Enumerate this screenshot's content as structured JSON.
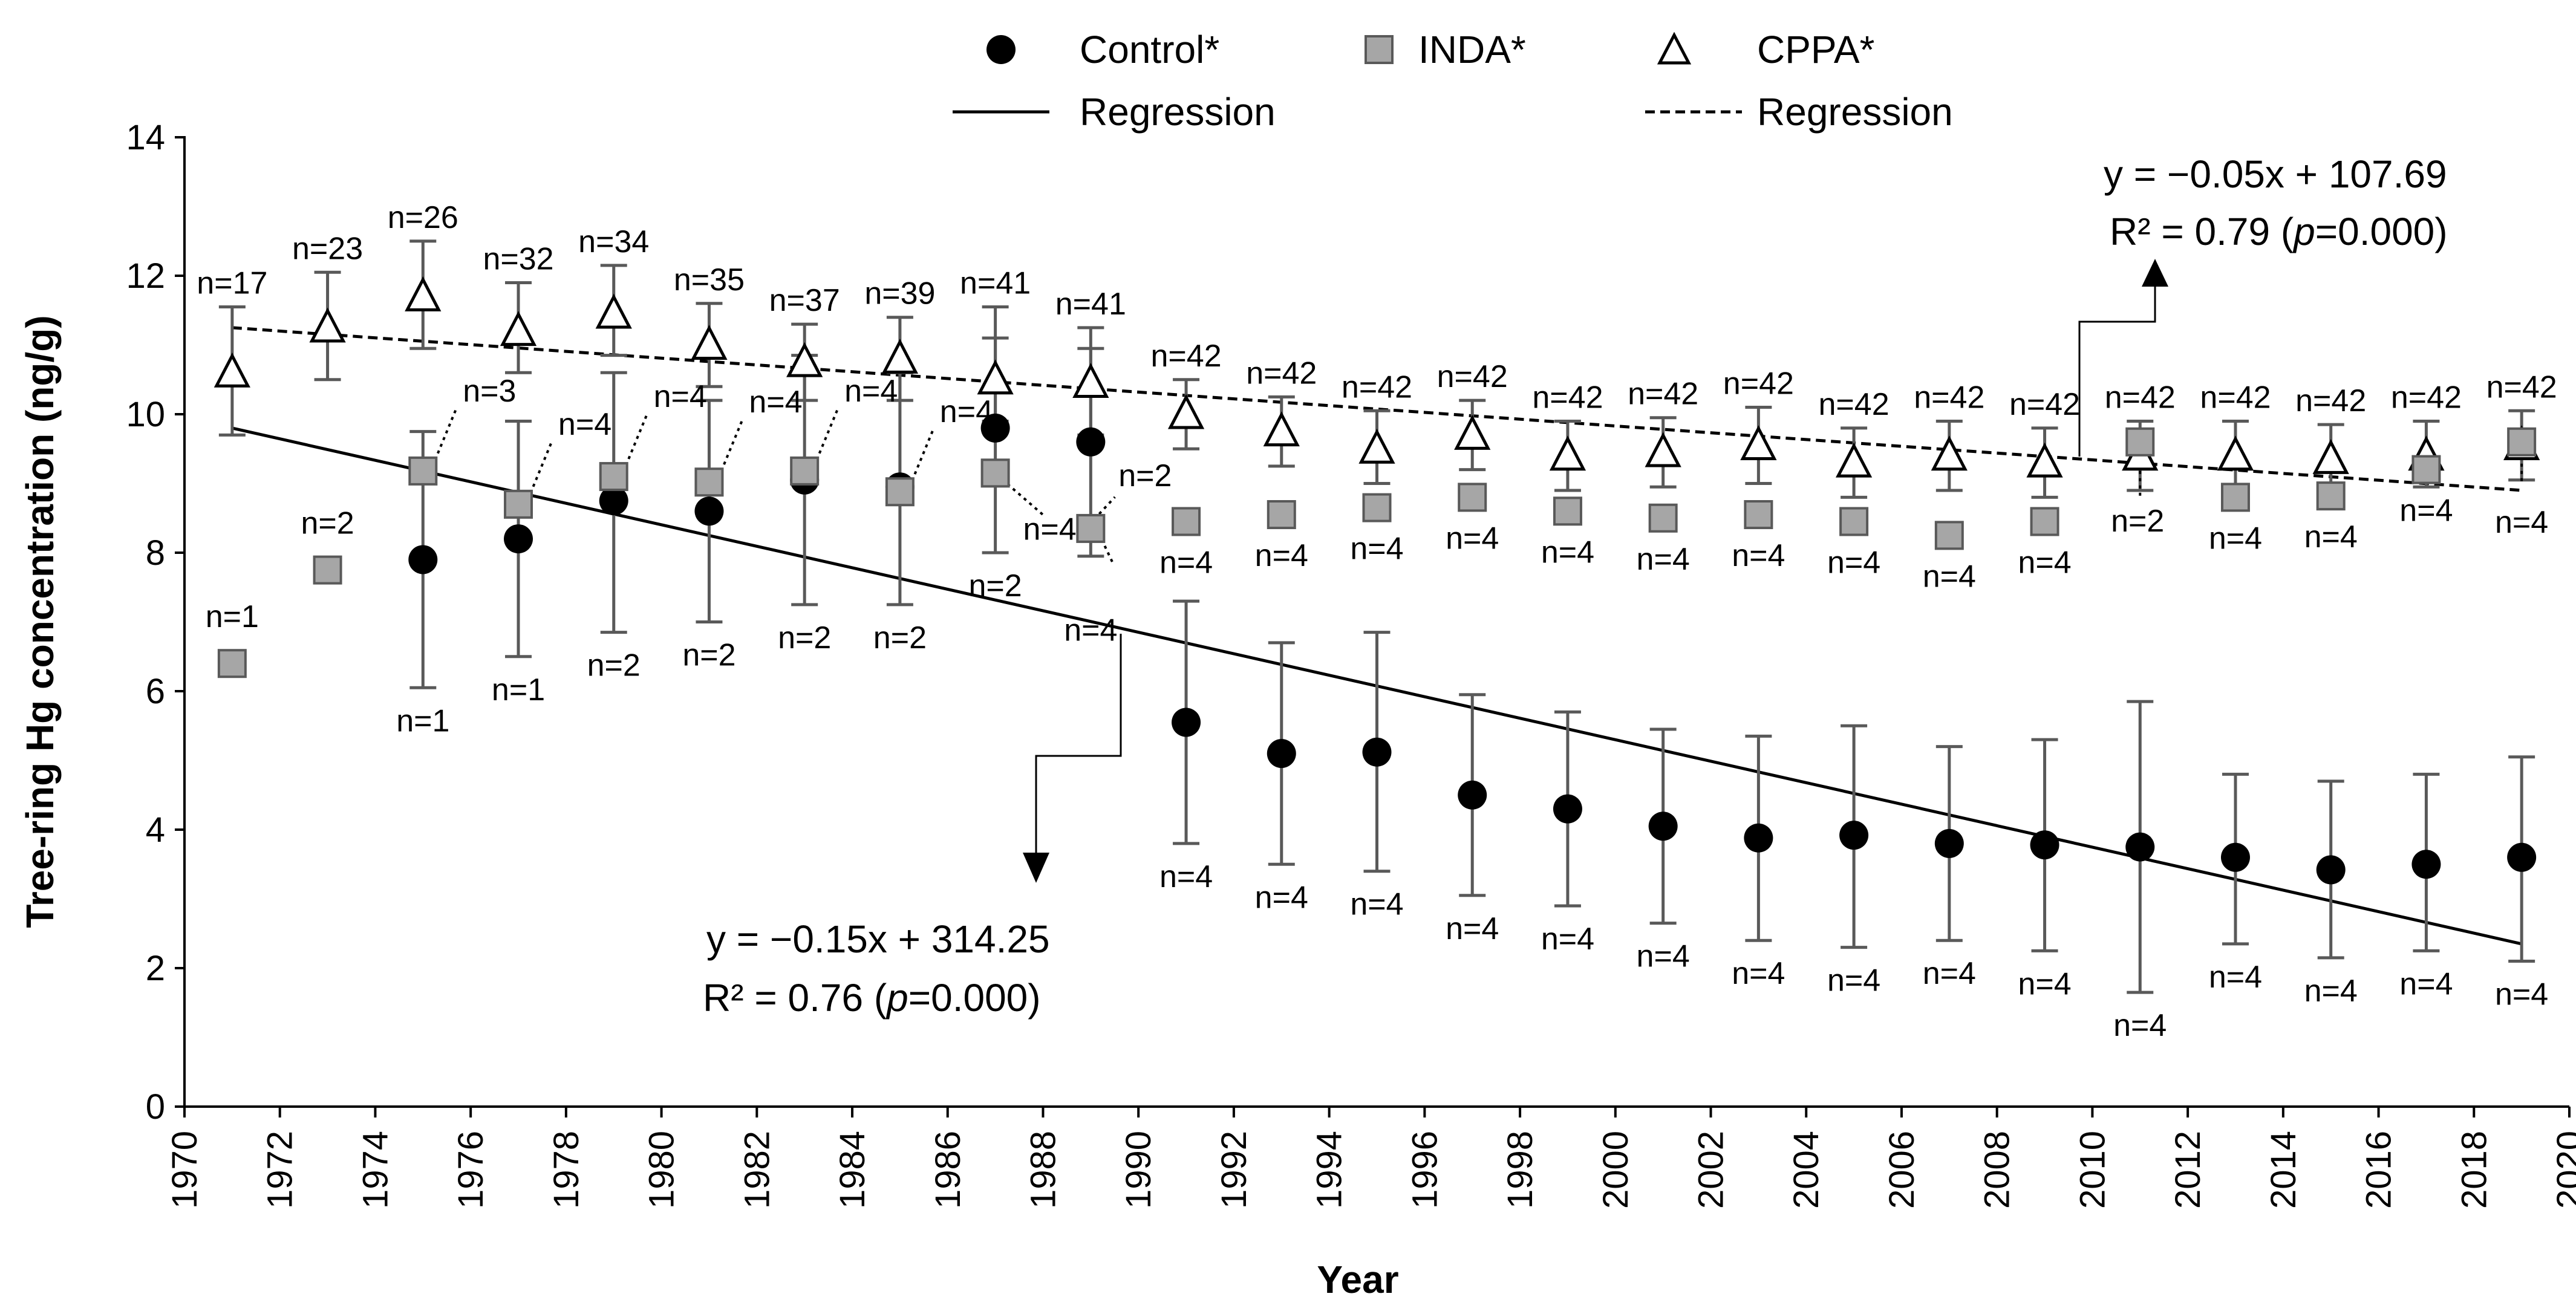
{
  "chart_data": {
    "type": "scatter",
    "xlabel": "Year",
    "ylabel": "Tree-ring Hg concentration (ng/g)",
    "xlim": [
      1970,
      2020
    ],
    "ylim": [
      0,
      14
    ],
    "x_ticks": [
      "1970",
      "1972",
      "1974",
      "1976",
      "1978",
      "1980",
      "1982",
      "1984",
      "1986",
      "1988",
      "1990",
      "1992",
      "1994",
      "1996",
      "1998",
      "2000",
      "2002",
      "2004",
      "2006",
      "2008",
      "2010",
      "2012",
      "2014",
      "2016",
      "2018",
      "2020"
    ],
    "y_ticks": [
      "0",
      "2",
      "4",
      "6",
      "8",
      "10",
      "12",
      "14"
    ],
    "legend": {
      "control": "Control*",
      "inda": "INDA*",
      "cppa": "CPPA*",
      "regression_solid": "Regression",
      "regression_dashed": "Regression"
    },
    "colors": {
      "ink": "#000000",
      "errorbar": "#595959",
      "inda_fill": "#a6a6a6",
      "inda_stroke": "#595959"
    },
    "series": [
      {
        "name": "Control*",
        "marker": "circle",
        "points": [
          {
            "x": 1975,
            "y": 7.9,
            "lo": 6.05,
            "hi": 9.75,
            "n": "n=1"
          },
          {
            "x": 1977,
            "y": 8.2,
            "lo": 6.5,
            "hi": 9.9,
            "n": "n=1"
          },
          {
            "x": 1979,
            "y": 8.75,
            "lo": 6.85,
            "hi": 10.6,
            "n": "n=2"
          },
          {
            "x": 1981,
            "y": 8.6,
            "lo": 7.0,
            "hi": 10.2,
            "n": "n=2"
          },
          {
            "x": 1983,
            "y": 9.05,
            "lo": 7.25,
            "hi": 10.85,
            "n": "n=2"
          },
          {
            "x": 1985,
            "y": 8.95,
            "lo": 7.25,
            "hi": 10.6,
            "n": "n=2"
          },
          {
            "x": 1987,
            "y": 9.8,
            "lo": 8.0,
            "hi": 11.1,
            "n": "n=2"
          },
          {
            "x": 1989,
            "y": 9.6,
            "lo": 7.95,
            "hi": 10.95,
            "n": "n=4"
          },
          {
            "x": 1991,
            "y": 5.55,
            "lo": 3.8,
            "hi": 7.3,
            "n": "n=4"
          },
          {
            "x": 1993,
            "y": 5.1,
            "lo": 3.5,
            "hi": 6.7,
            "n": "n=4"
          },
          {
            "x": 1995,
            "y": 5.12,
            "lo": 3.4,
            "hi": 6.85,
            "n": "n=4"
          },
          {
            "x": 1997,
            "y": 4.5,
            "lo": 3.05,
            "hi": 5.95,
            "n": "n=4"
          },
          {
            "x": 1999,
            "y": 4.3,
            "lo": 2.9,
            "hi": 5.7,
            "n": "n=4"
          },
          {
            "x": 2001,
            "y": 4.05,
            "lo": 2.65,
            "hi": 5.45,
            "n": "n=4"
          },
          {
            "x": 2003,
            "y": 3.88,
            "lo": 2.4,
            "hi": 5.35,
            "n": "n=4"
          },
          {
            "x": 2005,
            "y": 3.92,
            "lo": 2.3,
            "hi": 5.5,
            "n": "n=4"
          },
          {
            "x": 2007,
            "y": 3.8,
            "lo": 2.4,
            "hi": 5.2,
            "n": "n=4"
          },
          {
            "x": 2009,
            "y": 3.78,
            "lo": 2.25,
            "hi": 5.3,
            "n": "n=4"
          },
          {
            "x": 2011,
            "y": 3.75,
            "lo": 1.65,
            "hi": 5.85,
            "n": "n=4"
          },
          {
            "x": 2013,
            "y": 3.6,
            "lo": 2.35,
            "hi": 4.8,
            "n": "n=4"
          },
          {
            "x": 2015,
            "y": 3.42,
            "lo": 2.15,
            "hi": 4.7,
            "n": "n=4"
          },
          {
            "x": 2017,
            "y": 3.5,
            "lo": 2.25,
            "hi": 4.8,
            "n": "n=4"
          },
          {
            "x": 2019,
            "y": 3.6,
            "lo": 2.1,
            "hi": 5.05,
            "n": "n=4"
          }
        ]
      },
      {
        "name": "INDA*",
        "marker": "square",
        "points": [
          {
            "x": 1971,
            "y": 6.4,
            "n": "n=1"
          },
          {
            "x": 1973,
            "y": 7.75,
            "n": "n=2"
          },
          {
            "x": 1975,
            "y": 9.18,
            "n": "n=3"
          },
          {
            "x": 1977,
            "y": 8.7,
            "n": "n=4"
          },
          {
            "x": 1979,
            "y": 9.1,
            "n": "n=4"
          },
          {
            "x": 1981,
            "y": 9.02,
            "n": "n=4"
          },
          {
            "x": 1983,
            "y": 9.18,
            "n": "n=4"
          },
          {
            "x": 1985,
            "y": 8.88,
            "n": "n=4"
          },
          {
            "x": 1987,
            "y": 9.15,
            "n": "n=4"
          },
          {
            "x": 1989,
            "y": 8.35,
            "n": "n=2"
          },
          {
            "x": 1991,
            "y": 8.45,
            "n": "n=4"
          },
          {
            "x": 1993,
            "y": 8.55,
            "n": "n=4"
          },
          {
            "x": 1995,
            "y": 8.65,
            "n": "n=4"
          },
          {
            "x": 1997,
            "y": 8.8,
            "n": "n=4"
          },
          {
            "x": 1999,
            "y": 8.6,
            "n": "n=4"
          },
          {
            "x": 2001,
            "y": 8.5,
            "n": "n=4"
          },
          {
            "x": 2003,
            "y": 8.55,
            "n": "n=4"
          },
          {
            "x": 2005,
            "y": 8.45,
            "n": "n=4"
          },
          {
            "x": 2007,
            "y": 8.25,
            "n": "n=4"
          },
          {
            "x": 2009,
            "y": 8.45,
            "n": "n=4"
          },
          {
            "x": 2011,
            "y": 9.6,
            "n": "n=2"
          },
          {
            "x": 2013,
            "y": 8.8,
            "n": "n=4"
          },
          {
            "x": 2015,
            "y": 8.82,
            "n": "n=4"
          },
          {
            "x": 2017,
            "y": 9.2,
            "n": "n=4"
          },
          {
            "x": 2019,
            "y": 9.6,
            "n": "n=4"
          }
        ]
      },
      {
        "name": "CPPA*",
        "marker": "triangle",
        "points": [
          {
            "x": 1971,
            "y": 10.6,
            "lo": 9.7,
            "hi": 11.55,
            "n": "n=17"
          },
          {
            "x": 1973,
            "y": 11.25,
            "lo": 10.5,
            "hi": 12.05,
            "n": "n=23"
          },
          {
            "x": 1975,
            "y": 11.7,
            "lo": 10.95,
            "hi": 12.5,
            "n": "n=26"
          },
          {
            "x": 1977,
            "y": 11.2,
            "lo": 10.6,
            "hi": 11.9,
            "n": "n=32"
          },
          {
            "x": 1979,
            "y": 11.45,
            "lo": 10.85,
            "hi": 12.15,
            "n": "n=34"
          },
          {
            "x": 1981,
            "y": 11.0,
            "lo": 10.4,
            "hi": 11.6,
            "n": "n=35"
          },
          {
            "x": 1983,
            "y": 10.75,
            "lo": 10.2,
            "hi": 11.3,
            "n": "n=37"
          },
          {
            "x": 1985,
            "y": 10.8,
            "lo": 10.2,
            "hi": 11.4,
            "n": "n=39"
          },
          {
            "x": 1987,
            "y": 10.5,
            "lo": 9.9,
            "hi": 11.55,
            "n": "n=41"
          },
          {
            "x": 1989,
            "y": 10.45,
            "lo": 9.7,
            "hi": 11.25,
            "n": "n=41"
          },
          {
            "x": 1991,
            "y": 10.0,
            "lo": 9.5,
            "hi": 10.5,
            "n": "n=42"
          },
          {
            "x": 1993,
            "y": 9.75,
            "lo": 9.25,
            "hi": 10.25,
            "n": "n=42"
          },
          {
            "x": 1995,
            "y": 9.5,
            "lo": 9.0,
            "hi": 10.05,
            "n": "n=42"
          },
          {
            "x": 1997,
            "y": 9.7,
            "lo": 9.2,
            "hi": 10.2,
            "n": "n=42"
          },
          {
            "x": 1999,
            "y": 9.4,
            "lo": 8.9,
            "hi": 9.9,
            "n": "n=42"
          },
          {
            "x": 2001,
            "y": 9.45,
            "lo": 8.95,
            "hi": 9.95,
            "n": "n=42"
          },
          {
            "x": 2003,
            "y": 9.55,
            "lo": 9.0,
            "hi": 10.1,
            "n": "n=42"
          },
          {
            "x": 2005,
            "y": 9.3,
            "lo": 8.8,
            "hi": 9.8,
            "n": "n=42"
          },
          {
            "x": 2007,
            "y": 9.4,
            "lo": 8.9,
            "hi": 9.9,
            "n": "n=42"
          },
          {
            "x": 2009,
            "y": 9.3,
            "lo": 8.8,
            "hi": 9.8,
            "n": "n=42"
          },
          {
            "x": 2011,
            "y": 9.4,
            "lo": 8.9,
            "hi": 9.9,
            "n": "n=42"
          },
          {
            "x": 2013,
            "y": 9.4,
            "lo": 8.95,
            "hi": 9.9,
            "n": "n=42"
          },
          {
            "x": 2015,
            "y": 9.35,
            "lo": 8.9,
            "hi": 9.85,
            "n": "n=42"
          },
          {
            "x": 2017,
            "y": 9.4,
            "lo": 8.95,
            "hi": 9.9,
            "n": "n=42"
          },
          {
            "x": 2019,
            "y": 9.55,
            "lo": 9.05,
            "hi": 10.05,
            "n": "n=42"
          }
        ]
      }
    ],
    "regressions": [
      {
        "name": "Control regression",
        "style": "solid",
        "x0": 1971,
        "y0": 9.8,
        "x1": 2019,
        "y1": 2.35,
        "equation": "y = −0.15x + 314.25",
        "r2_prefix": "R² = 0.76 (",
        "p_label": "p",
        "r2_suffix": "=0.000)"
      },
      {
        "name": "CPPA regression",
        "style": "dashed",
        "x0": 1971,
        "y0": 11.25,
        "x1": 2019,
        "y1": 8.9,
        "equation": "y = −0.05x + 107.69",
        "r2_prefix": "R² = 0.79 (",
        "p_label": "p",
        "r2_suffix": "=0.000)"
      }
    ]
  }
}
